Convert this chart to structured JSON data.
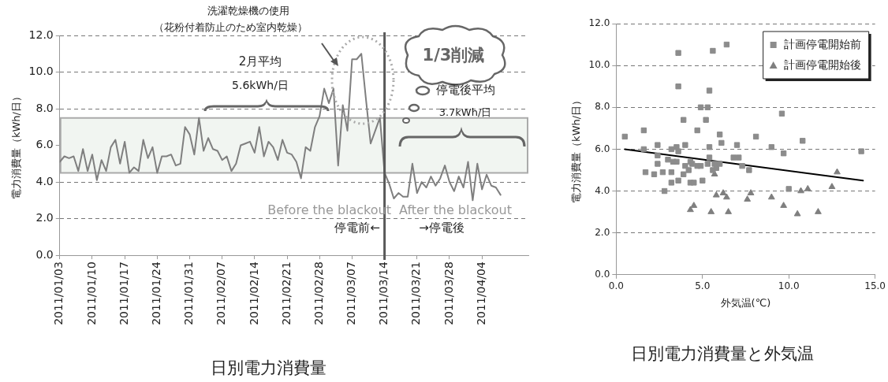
{
  "chart_data": [
    {
      "type": "line",
      "title": "日別電力消費量",
      "ylabel": "電力消費量（kWh/日）",
      "x": [
        "2011-01-03",
        "2011-01-04",
        "2011-01-05",
        "2011-01-06",
        "2011-01-07",
        "2011-01-08",
        "2011-01-09",
        "2011-01-10",
        "2011-01-11",
        "2011-01-12",
        "2011-01-13",
        "2011-01-14",
        "2011-01-15",
        "2011-01-16",
        "2011-01-17",
        "2011-01-18",
        "2011-01-19",
        "2011-01-20",
        "2011-01-21",
        "2011-01-22",
        "2011-01-23",
        "2011-01-24",
        "2011-01-25",
        "2011-01-26",
        "2011-01-27",
        "2011-01-28",
        "2011-01-29",
        "2011-01-30",
        "2011-01-31",
        "2011-02-01",
        "2011-02-02",
        "2011-02-03",
        "2011-02-04",
        "2011-02-05",
        "2011-02-06",
        "2011-02-07",
        "2011-02-08",
        "2011-02-09",
        "2011-02-10",
        "2011-02-11",
        "2011-02-12",
        "2011-02-13",
        "2011-02-14",
        "2011-02-15",
        "2011-02-16",
        "2011-02-17",
        "2011-02-18",
        "2011-02-19",
        "2011-02-20",
        "2011-02-21",
        "2011-02-22",
        "2011-02-23",
        "2011-02-24",
        "2011-02-25",
        "2011-02-26",
        "2011-02-27",
        "2011-02-28",
        "2011-03-01",
        "2011-03-02",
        "2011-03-03",
        "2011-03-04",
        "2011-03-05",
        "2011-03-06",
        "2011-03-07",
        "2011-03-08",
        "2011-03-09",
        "2011-03-10",
        "2011-03-11",
        "2011-03-12",
        "2011-03-13",
        "2011-03-14",
        "2011-03-15",
        "2011-03-16",
        "2011-03-17",
        "2011-03-18",
        "2011-03-19",
        "2011-03-20",
        "2011-03-21",
        "2011-03-22",
        "2011-03-23",
        "2011-03-24",
        "2011-03-25",
        "2011-03-26",
        "2011-03-27",
        "2011-03-28",
        "2011-03-29",
        "2011-03-30",
        "2011-03-31",
        "2011-04-01",
        "2011-04-02",
        "2011-04-03",
        "2011-04-04",
        "2011-04-05",
        "2011-04-06",
        "2011-04-07",
        "2011-04-08"
      ],
      "series": [
        {
          "color": "#7f7f7f",
          "values": [
            5.1,
            5.4,
            5.3,
            5.4,
            4.6,
            5.8,
            4.6,
            5.5,
            4.1,
            5.2,
            4.6,
            5.9,
            6.3,
            5.0,
            6.2,
            4.5,
            4.8,
            4.6,
            6.3,
            5.3,
            5.9,
            4.5,
            5.4,
            5.4,
            5.5,
            4.9,
            5.0,
            7.0,
            6.6,
            5.5,
            7.5,
            5.7,
            6.4,
            5.8,
            5.7,
            5.2,
            5.4,
            4.6,
            5.0,
            6.0,
            6.1,
            6.2,
            5.6,
            7.0,
            5.4,
            6.2,
            5.9,
            5.2,
            6.3,
            5.6,
            5.5,
            5.1,
            4.2,
            5.9,
            5.7,
            7.0,
            7.6,
            9.1,
            8.3,
            9.1,
            4.9,
            8.2,
            6.8,
            10.7,
            10.7,
            11.0,
            8.5,
            6.1,
            6.8,
            7.5,
            4.5,
            3.9,
            3.1,
            3.4,
            3.2,
            3.2,
            5.0,
            3.4,
            4.0,
            3.7,
            4.3,
            3.8,
            4.2,
            4.9,
            4.0,
            3.5,
            4.3,
            3.7,
            5.1,
            3.0,
            5.0,
            3.6,
            4.4,
            3.8,
            3.7,
            3.3
          ]
        }
      ],
      "xlim": [
        "2011-01-03",
        "2011-04-14"
      ],
      "xticks": [
        {
          "value": "2011-01-03",
          "label": "2011/01/03"
        },
        {
          "value": "2011-01-10",
          "label": "2011/01/10"
        },
        {
          "value": "2011-01-17",
          "label": "2011/01/17"
        },
        {
          "value": "2011-01-24",
          "label": "2011/01/24"
        },
        {
          "value": "2011-01-31",
          "label": "2011/01/31"
        },
        {
          "value": "2011-02-07",
          "label": "2011/02/07"
        },
        {
          "value": "2011-02-14",
          "label": "2011/02/14"
        },
        {
          "value": "2011-02-21",
          "label": "2011/02/21"
        },
        {
          "value": "2011-02-28",
          "label": "2011/02/28"
        },
        {
          "value": "2011-03-07",
          "label": "2011/03/07"
        },
        {
          "value": "2011-03-14",
          "label": "2011/03/14"
        },
        {
          "value": "2011-03-21",
          "label": "2011/03/21"
        },
        {
          "value": "2011-03-28",
          "label": "2011/03/28"
        },
        {
          "value": "2011-04-04",
          "label": "2011/04/04"
        }
      ],
      "ylim": [
        0,
        12
      ],
      "yticks": [
        {
          "value": 0,
          "label": "0.0"
        },
        {
          "value": 2,
          "label": "2.0"
        },
        {
          "value": 4,
          "label": "4.0"
        },
        {
          "value": 6,
          "label": "6.0"
        },
        {
          "value": 8,
          "label": "8.0"
        },
        {
          "value": 10,
          "label": "10.0"
        },
        {
          "value": 12,
          "label": "12.0"
        }
      ],
      "grid": "y",
      "marker": "none",
      "line_style": "solid",
      "ref_lines": [
        {
          "axis": "x",
          "value": "2011-03-14",
          "color": "#595959"
        }
      ],
      "bands": [
        {
          "axis": "y",
          "from": 4.5,
          "to": 7.5,
          "color": "#f1f5f1"
        }
      ],
      "annotations": [
        "洗濯乾燥機の使用",
        "（花粉付着防止のため室内乾燥）",
        "2月平均",
        "5.6kWh/日",
        "1/3削減",
        "停電後平均",
        "3.7kWh/日",
        "Before the blackout",
        "After the blackout",
        "停電前←",
        "→停電後"
      ]
    },
    {
      "type": "scatter",
      "title": "日別電力消費量と外気温",
      "xlabel": "外気温(℃)",
      "ylabel": "電力消費量（kWh/日）",
      "series": [
        {
          "name": "計画停電開始前",
          "color": "#8c8c8c",
          "marker": "square",
          "x": [
            0.5,
            1.6,
            1.6,
            1.7,
            2.2,
            2.4,
            2.4,
            2.4,
            2.7,
            2.8,
            3.2,
            3.2,
            3.2,
            3.0,
            3.3,
            3.5,
            3.5,
            3.6,
            3.6,
            3.6,
            3.6,
            3.9,
            3.9,
            4.0,
            4.0,
            4.2,
            4.3,
            4.3,
            4.5,
            4.4,
            4.7,
            4.7,
            4.9,
            4.9,
            5.0,
            5.2,
            5.3,
            5.4,
            5.4,
            5.4,
            5.3,
            5.6,
            5.6,
            5.7,
            5.8,
            6.0,
            6.1,
            6.0,
            6.4,
            6.8,
            7.0,
            7.1,
            7.3,
            7.7,
            8.1,
            9.0,
            9.6,
            9.7,
            10.0,
            10.8,
            14.2
          ],
          "values": [
            6.6,
            6.9,
            6.0,
            4.9,
            4.8,
            6.2,
            5.7,
            5.3,
            4.9,
            4.0,
            6.0,
            4.9,
            4.4,
            5.5,
            5.4,
            6.1,
            5.4,
            10.6,
            9.0,
            4.5,
            5.9,
            7.4,
            4.8,
            6.2,
            5.2,
            5.0,
            5.4,
            4.4,
            4.4,
            5.3,
            6.9,
            5.2,
            5.2,
            8.0,
            4.5,
            7.4,
            8.0,
            8.8,
            6.1,
            5.6,
            5.3,
            10.7,
            5.0,
            5.3,
            5.1,
            6.7,
            6.3,
            5.3,
            11.0,
            5.6,
            6.2,
            5.6,
            5.2,
            5.0,
            6.6,
            6.1,
            7.7,
            5.8,
            4.1,
            6.4,
            5.9
          ]
        },
        {
          "name": "計画停電開始後",
          "color": "#7f7f7f",
          "marker": "triangle",
          "x": [
            4.3,
            4.5,
            5.5,
            5.7,
            5.8,
            6.2,
            6.4,
            6.5,
            7.6,
            7.8,
            9.0,
            9.7,
            10.5,
            10.7,
            11.1,
            11.7,
            12.5,
            12.8
          ],
          "values": [
            3.1,
            3.3,
            3.0,
            4.8,
            3.8,
            3.9,
            3.7,
            3.0,
            3.6,
            3.9,
            3.7,
            3.3,
            2.9,
            4.0,
            4.1,
            3.0,
            4.2,
            4.9
          ]
        },
        {
          "type": "line",
          "color": "#000000",
          "marker": "none",
          "x": [
            0.5,
            14.3
          ],
          "values": [
            6.0,
            4.5
          ]
        }
      ],
      "xlim": [
        0,
        15
      ],
      "xticks": [
        {
          "value": 0,
          "label": "0.0"
        },
        {
          "value": 5,
          "label": "5.0"
        },
        {
          "value": 10,
          "label": "10.0"
        },
        {
          "value": 15,
          "label": "15.0"
        }
      ],
      "ylim": [
        0,
        12
      ],
      "yticks": [
        {
          "value": 0,
          "label": "0.0"
        },
        {
          "value": 2,
          "label": "2.0"
        },
        {
          "value": 4,
          "label": "4.0"
        },
        {
          "value": 6,
          "label": "6.0"
        },
        {
          "value": 8,
          "label": "8.0"
        },
        {
          "value": 10,
          "label": "10.0"
        },
        {
          "value": 12,
          "label": "12.0"
        }
      ],
      "grid": "y",
      "legend": "top right"
    }
  ]
}
